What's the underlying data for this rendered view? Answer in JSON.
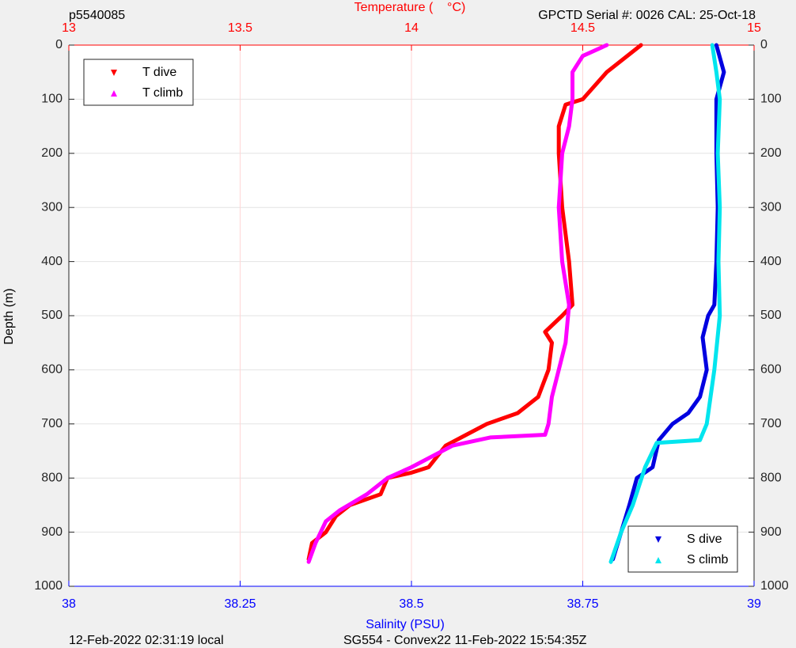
{
  "chart_data": {
    "type": "profile",
    "title_left": "p5540085",
    "title_right": "GPCTD Serial #: 0026 CAL: 25-Oct-18",
    "x2_label": "Temperature (    °C)",
    "x_label": "Salinity (PSU)",
    "y_label": "Depth (m)",
    "footer_left": "12-Feb-2022 02:31:19 local",
    "footer_right": "SG554 - Convex22 11-Feb-2022 15:54:35Z",
    "xlim": [
      38,
      39
    ],
    "xticks": [
      38,
      38.25,
      38.5,
      38.75,
      39
    ],
    "x_color": "#0000ff",
    "x2lim": [
      13,
      15
    ],
    "x2ticks": [
      13,
      13.5,
      14,
      14.5,
      15
    ],
    "x2_color": "#ff0000",
    "ylim": [
      0,
      1000
    ],
    "yticks": [
      0,
      100,
      200,
      300,
      400,
      500,
      600,
      700,
      800,
      900,
      1000
    ],
    "y_reversed": true,
    "grid": true,
    "legends": [
      {
        "loc": "upper left",
        "series": [
          0,
          1
        ]
      },
      {
        "loc": "lower right",
        "series": [
          2,
          3
        ]
      }
    ],
    "series": [
      {
        "name": "T dive",
        "color": "#ff0000",
        "axis": "x2",
        "marker": "triangle-down",
        "x": [
          14.67,
          14.57,
          14.5,
          14.45,
          14.43,
          14.43,
          14.44,
          14.46,
          14.47,
          14.44,
          14.39,
          14.41,
          14.4,
          14.37,
          14.31,
          14.22,
          14.16,
          14.1,
          14.05,
          14.0,
          13.93,
          13.91,
          13.82,
          13.78,
          13.75,
          13.71,
          13.7
        ],
        "y": [
          0,
          50,
          100,
          110,
          150,
          200,
          300,
          400,
          480,
          500,
          530,
          550,
          600,
          650,
          680,
          700,
          720,
          740,
          780,
          790,
          800,
          830,
          850,
          870,
          900,
          920,
          950
        ]
      },
      {
        "name": "T climb",
        "color": "#ff00ff",
        "axis": "x2",
        "marker": "triangle-up",
        "x": [
          14.57,
          14.5,
          14.47,
          14.47,
          14.46,
          14.44,
          14.43,
          14.44,
          14.46,
          14.45,
          14.43,
          14.41,
          14.4,
          14.39,
          14.23,
          14.12,
          14.0,
          13.93,
          13.87,
          13.79,
          13.75,
          13.72,
          13.7
        ],
        "y": [
          0,
          20,
          50,
          100,
          150,
          200,
          300,
          400,
          480,
          550,
          600,
          650,
          700,
          720,
          725,
          740,
          780,
          800,
          830,
          860,
          880,
          920,
          955
        ]
      },
      {
        "name": "S dive",
        "color": "#0000e0",
        "axis": "x",
        "marker": "triangle-down",
        "x": [
          38.945,
          38.956,
          38.945,
          38.945,
          38.947,
          38.945,
          38.942,
          38.933,
          38.925,
          38.931,
          38.921,
          38.904,
          38.881,
          38.861,
          38.852,
          38.829,
          38.818,
          38.806,
          38.794
        ],
        "y": [
          0,
          50,
          100,
          200,
          300,
          400,
          480,
          500,
          540,
          600,
          650,
          680,
          700,
          730,
          780,
          800,
          850,
          900,
          950
        ]
      },
      {
        "name": "S climb",
        "color": "#00e5ee",
        "axis": "x",
        "marker": "triangle-up",
        "x": [
          38.939,
          38.945,
          38.95,
          38.947,
          38.95,
          38.948,
          38.95,
          38.942,
          38.931,
          38.921,
          38.858,
          38.841,
          38.823,
          38.806,
          38.791
        ],
        "y": [
          0,
          50,
          100,
          200,
          300,
          400,
          500,
          600,
          700,
          730,
          735,
          780,
          850,
          900,
          955
        ]
      }
    ]
  }
}
